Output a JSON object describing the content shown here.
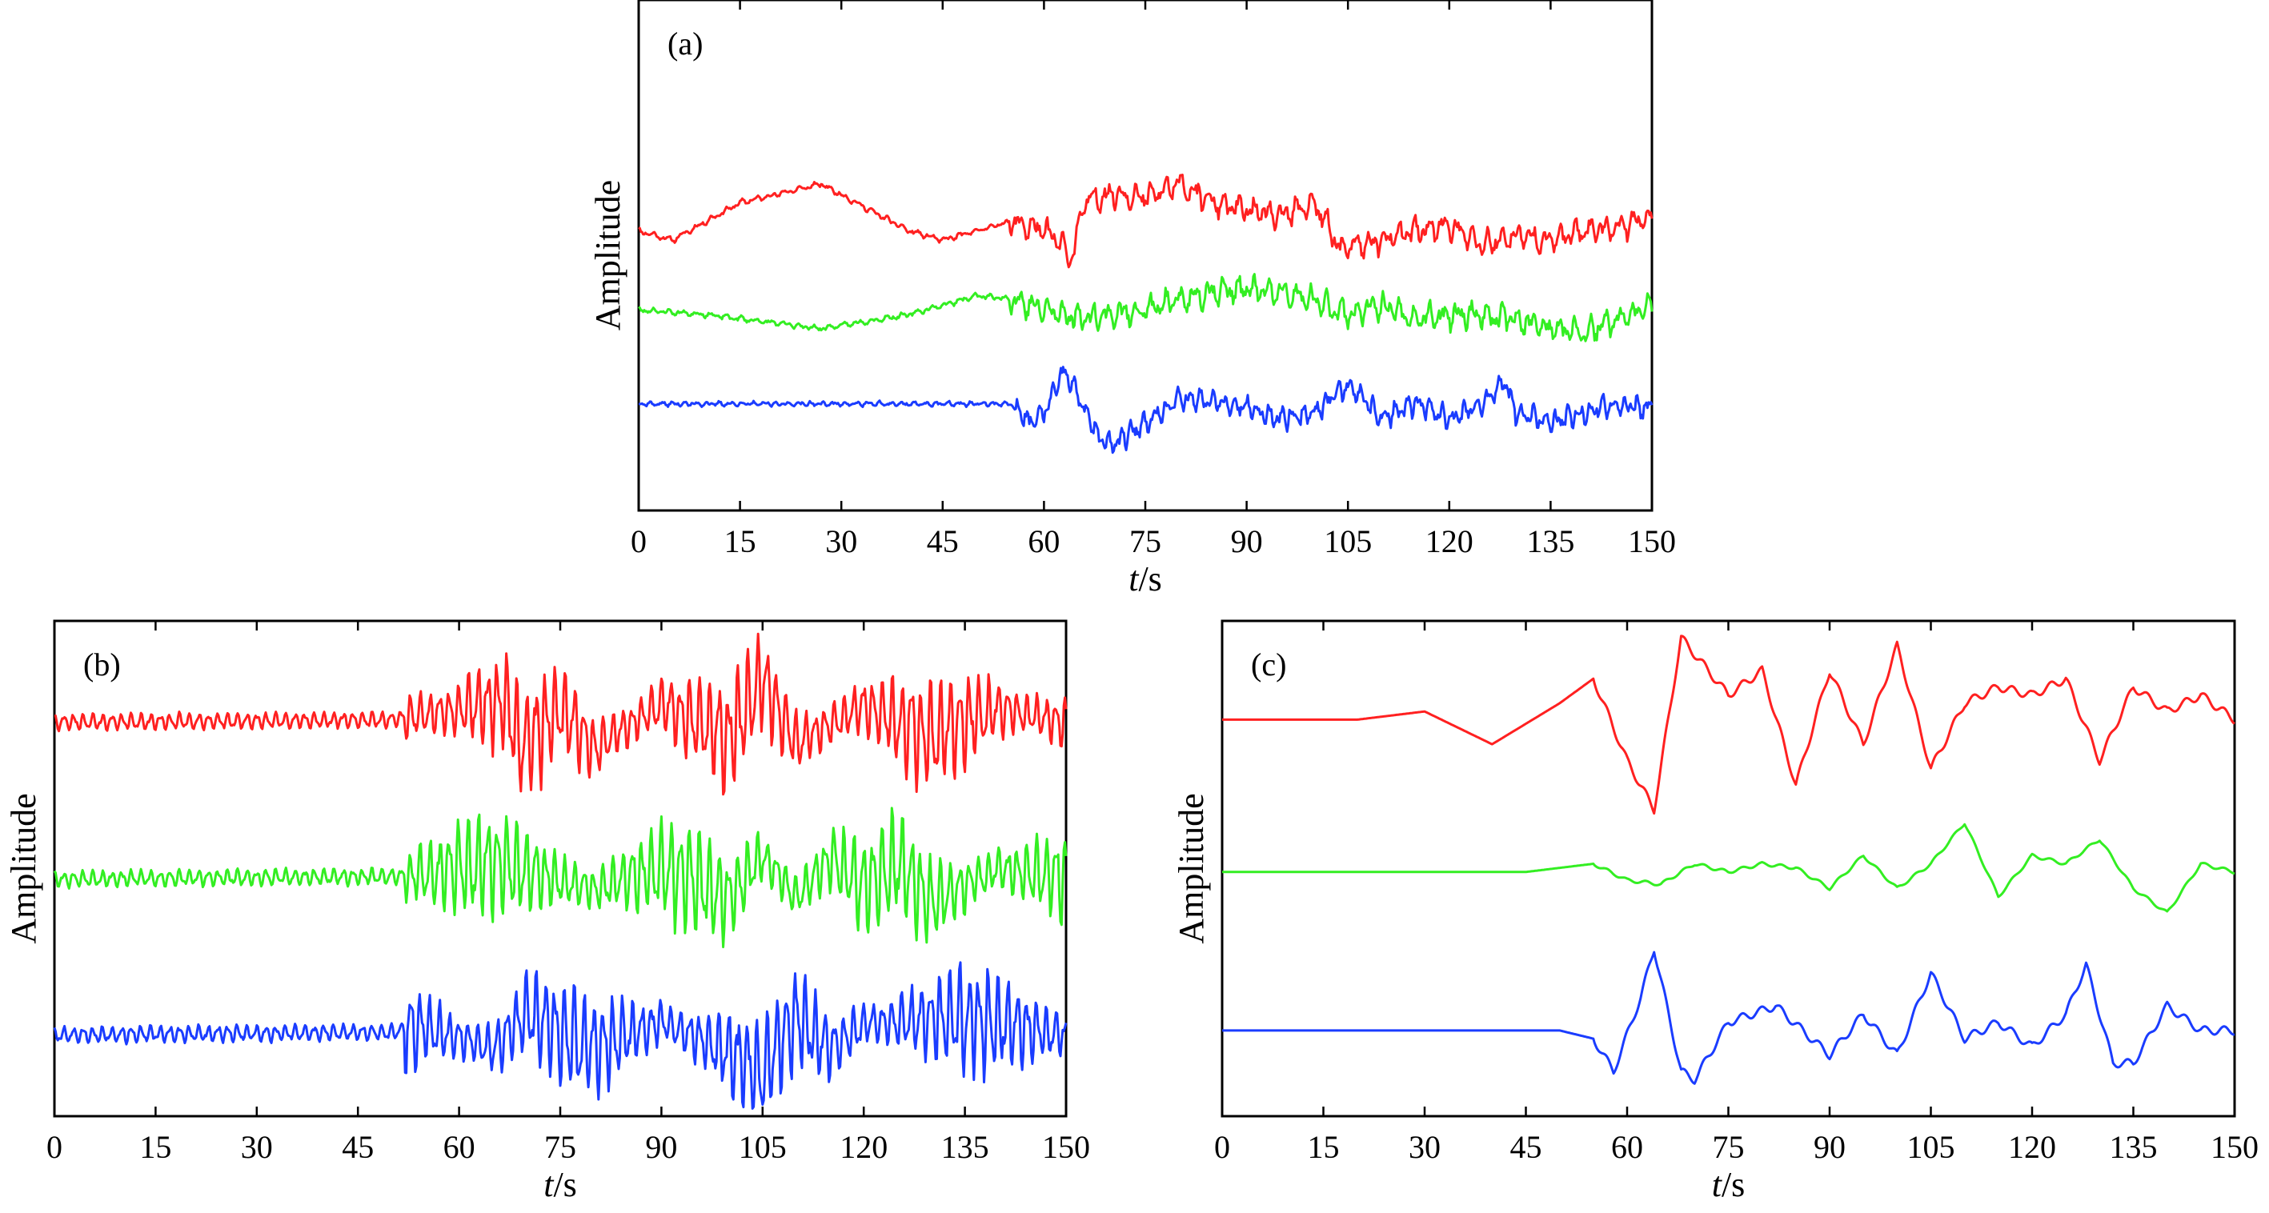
{
  "figure": {
    "panels": [
      {
        "id": "a",
        "panel_label": "(a)",
        "xlabel_italic": "t",
        "xlabel_unit": "/s",
        "ylabel": "Amplitude",
        "traces": [
          {
            "color": "#ff2020",
            "style": "wide",
            "seed": 11
          },
          {
            "color": "#33ee22",
            "style": "wide",
            "seed": 23
          },
          {
            "color": "#1a3cff",
            "style": "quiet",
            "seed": 37
          }
        ]
      },
      {
        "id": "b",
        "panel_label": "(b)",
        "xlabel_italic": "t",
        "xlabel_unit": "/s",
        "ylabel": "Amplitude",
        "traces": [
          {
            "color": "#ff2020",
            "style": "osc",
            "seed": 41
          },
          {
            "color": "#33ee22",
            "style": "osc",
            "seed": 53
          },
          {
            "color": "#1a3cff",
            "style": "osc",
            "seed": 67
          }
        ]
      },
      {
        "id": "c",
        "panel_label": "(c)",
        "xlabel_italic": "t",
        "xlabel_unit": "/s",
        "ylabel": "Amplitude",
        "traces": [
          {
            "color": "#ff2020",
            "style": "smooth",
            "seed": 71
          },
          {
            "color": "#33ee22",
            "style": "smoothsmall",
            "seed": 83
          },
          {
            "color": "#1a3cff",
            "style": "smooth",
            "seed": 97
          }
        ]
      }
    ]
  },
  "chart_data": [
    {
      "type": "line",
      "title": "(a)",
      "xlabel": "t/s",
      "ylabel": "Amplitude",
      "xlim": [
        0,
        150
      ],
      "x_ticks": [
        0,
        15,
        30,
        45,
        60,
        75,
        90,
        105,
        120,
        135,
        150
      ],
      "x_tick_labels": [
        "0",
        "15",
        "30",
        "45",
        "60",
        "75",
        "90",
        "105",
        "120",
        "135",
        "150"
      ],
      "series": [
        {
          "name": "red",
          "color": "#ff2020",
          "x": [
            0,
            5,
            15,
            27,
            40,
            45,
            55,
            60,
            62,
            64,
            66,
            70,
            75,
            80,
            85,
            88,
            95,
            100,
            104,
            110,
            115,
            120,
            125,
            130,
            135,
            140,
            145,
            150
          ],
          "values": [
            2.6,
            2.5,
            2.9,
            3.1,
            2.6,
            2.5,
            2.7,
            2.6,
            2.5,
            2.3,
            2.9,
            3.0,
            2.95,
            3.1,
            2.9,
            2.85,
            2.75,
            2.9,
            2.4,
            2.5,
            2.6,
            2.65,
            2.45,
            2.55,
            2.5,
            2.6,
            2.65,
            2.75
          ]
        },
        {
          "name": "green",
          "color": "#33ee22",
          "x": [
            0,
            10,
            27,
            40,
            50,
            55,
            60,
            65,
            70,
            75,
            80,
            85,
            90,
            95,
            100,
            105,
            110,
            115,
            120,
            125,
            130,
            135,
            140,
            145,
            150
          ],
          "values": [
            1.5,
            1.45,
            1.3,
            1.45,
            1.65,
            1.62,
            1.5,
            1.42,
            1.45,
            1.5,
            1.6,
            1.7,
            1.72,
            1.68,
            1.6,
            1.45,
            1.55,
            1.4,
            1.45,
            1.45,
            1.4,
            1.3,
            1.25,
            1.4,
            1.55
          ]
        },
        {
          "name": "blue",
          "color": "#1a3cff",
          "x": [
            0,
            10,
            20,
            30,
            40,
            50,
            55,
            58,
            60,
            63,
            65,
            68,
            70,
            75,
            80,
            85,
            90,
            95,
            100,
            105,
            110,
            115,
            120,
            125,
            128,
            130,
            135,
            140,
            145,
            150
          ],
          "values": [
            0.5,
            0.5,
            0.5,
            0.5,
            0.5,
            0.5,
            0.5,
            0.3,
            0.4,
            0.85,
            0.6,
            0.15,
            0.05,
            0.3,
            0.55,
            0.55,
            0.45,
            0.35,
            0.4,
            0.7,
            0.35,
            0.5,
            0.35,
            0.5,
            0.75,
            0.4,
            0.3,
            0.4,
            0.5,
            0.45
          ]
        }
      ]
    },
    {
      "type": "line",
      "title": "(b)",
      "xlabel": "t/s",
      "ylabel": "Amplitude",
      "xlim": [
        0,
        150
      ],
      "x_ticks": [
        0,
        15,
        30,
        45,
        60,
        75,
        90,
        105,
        120,
        135,
        150
      ],
      "x_tick_labels": [
        "0",
        "15",
        "30",
        "45",
        "60",
        "75",
        "90",
        "105",
        "120",
        "135",
        "150"
      ],
      "series": [
        {
          "name": "red",
          "color": "#ff2020",
          "x": [
            0,
            25,
            50,
            55,
            67,
            69,
            75,
            80,
            90,
            100,
            105,
            110,
            120,
            130,
            140,
            150
          ],
          "values": [
            0,
            0.05,
            0.1,
            0.3,
            0.8,
            -0.9,
            0.5,
            -1.0,
            0.7,
            -0.6,
            1.6,
            -0.8,
            0.6,
            -0.5,
            0.5,
            0
          ]
        },
        {
          "name": "green",
          "color": "#33ee22",
          "x": [
            0,
            25,
            50,
            55,
            65,
            80,
            90,
            100,
            105,
            110,
            115,
            120,
            125,
            130,
            140,
            150
          ],
          "values": [
            0,
            0.05,
            0.1,
            0.2,
            0.6,
            -0.4,
            0.5,
            -0.7,
            0.9,
            -0.7,
            0.8,
            -0.3,
            0.6,
            -0.9,
            0.4,
            0
          ]
        },
        {
          "name": "blue",
          "color": "#1a3cff",
          "x": [
            0,
            25,
            50,
            55,
            65,
            70,
            80,
            90,
            100,
            105,
            110,
            115,
            120,
            130,
            140,
            150
          ],
          "values": [
            0,
            0.05,
            0.1,
            0.3,
            -0.5,
            0.8,
            -0.5,
            0.5,
            -0.7,
            -1.4,
            0.7,
            -0.6,
            0.4,
            0.6,
            0.5,
            0
          ]
        }
      ]
    },
    {
      "type": "line",
      "title": "(c)",
      "xlabel": "t/s",
      "ylabel": "Amplitude",
      "xlim": [
        0,
        150
      ],
      "x_ticks": [
        0,
        15,
        30,
        45,
        60,
        75,
        90,
        105,
        120,
        135,
        150
      ],
      "x_tick_labels": [
        "0",
        "15",
        "30",
        "45",
        "60",
        "75",
        "90",
        "105",
        "120",
        "135",
        "150"
      ],
      "series": [
        {
          "name": "red",
          "color": "#ff2020",
          "x": [
            0,
            20,
            30,
            40,
            50,
            55,
            60,
            64,
            68,
            75,
            80,
            85,
            90,
            95,
            100,
            105,
            110,
            115,
            120,
            125,
            130,
            135,
            140,
            145,
            150
          ],
          "values": [
            0,
            0,
            0.1,
            -0.3,
            0.2,
            0.5,
            -0.5,
            -1.1,
            1.0,
            0.3,
            0.6,
            -0.8,
            0.6,
            -0.3,
            0.9,
            -0.6,
            0.2,
            0.4,
            0.3,
            0.5,
            -0.5,
            0.4,
            0.1,
            0.3,
            0
          ]
        },
        {
          "name": "green",
          "color": "#33ee22",
          "x": [
            0,
            30,
            45,
            55,
            60,
            65,
            70,
            75,
            80,
            85,
            90,
            95,
            100,
            105,
            110,
            115,
            120,
            125,
            130,
            135,
            140,
            145,
            150
          ],
          "values": [
            0,
            0,
            0,
            0.1,
            -0.1,
            -0.15,
            0.1,
            0,
            0.1,
            0.05,
            -0.2,
            0.2,
            -0.2,
            0.1,
            0.6,
            -0.3,
            0.2,
            0.1,
            0.4,
            -0.2,
            -0.5,
            0.1,
            0
          ]
        },
        {
          "name": "blue",
          "color": "#1a3cff",
          "x": [
            0,
            30,
            50,
            55,
            58,
            62,
            64,
            68,
            70,
            75,
            82,
            90,
            95,
            100,
            105,
            110,
            115,
            120,
            125,
            128,
            132,
            135,
            140,
            145,
            150
          ],
          "values": [
            0,
            0,
            0,
            -0.1,
            -0.5,
            0.4,
            1.0,
            -0.5,
            -0.6,
            0.1,
            0.3,
            -0.3,
            0.2,
            -0.3,
            0.7,
            -0.1,
            0.1,
            -0.2,
            0.2,
            0.8,
            -0.4,
            -0.4,
            0.3,
            0.0,
            0
          ]
        }
      ]
    }
  ]
}
